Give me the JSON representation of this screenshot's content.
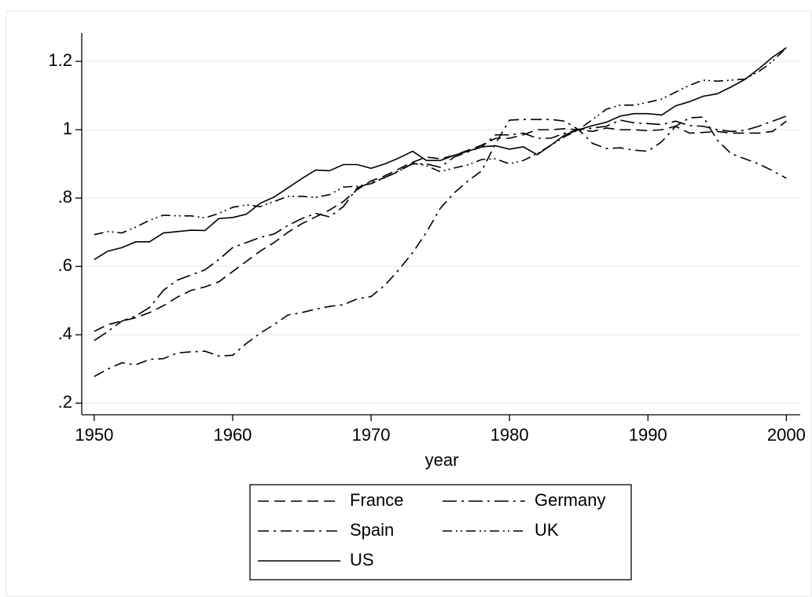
{
  "chart_data": {
    "type": "line",
    "x_label": "year",
    "x": [
      1950,
      1951,
      1952,
      1953,
      1954,
      1955,
      1956,
      1957,
      1958,
      1959,
      1960,
      1961,
      1962,
      1963,
      1964,
      1965,
      1966,
      1967,
      1968,
      1969,
      1970,
      1971,
      1972,
      1973,
      1974,
      1975,
      1976,
      1977,
      1978,
      1979,
      1980,
      1981,
      1982,
      1983,
      1984,
      1985,
      1986,
      1987,
      1988,
      1989,
      1990,
      1991,
      1992,
      1993,
      1994,
      1995,
      1996,
      1997,
      1998,
      1999,
      2000
    ],
    "xlim": [
      1949.1,
      2001
    ],
    "xticks": [
      1950,
      1960,
      1970,
      1980,
      1990,
      2000
    ],
    "ylim": [
      0.166,
      1.283
    ],
    "yticks": [
      {
        "value": 0.2,
        "label": ".2"
      },
      {
        "value": 0.4,
        "label": ".4"
      },
      {
        "value": 0.6,
        "label": ".6"
      },
      {
        "value": 0.8,
        "label": ".8"
      },
      1,
      {
        "value": 1.2,
        "label": "1.2"
      }
    ],
    "grid": true,
    "legend": "bottom",
    "series": [
      {
        "name": "France",
        "color": "#000000",
        "style": "dash",
        "values": [
          0.41,
          0.43,
          0.44,
          0.45,
          0.465,
          0.485,
          0.51,
          0.53,
          0.54,
          0.555,
          0.585,
          0.615,
          0.645,
          0.67,
          0.7,
          0.725,
          0.745,
          0.765,
          0.79,
          0.825,
          0.85,
          0.865,
          0.885,
          0.905,
          0.92,
          0.915,
          0.925,
          0.94,
          0.955,
          0.975,
          0.975,
          0.985,
          1.0,
          1.0,
          1.003,
          1.0,
          0.995,
          1.005,
          1.0,
          1.0,
          0.997,
          1.0,
          1.01,
          0.99,
          0.992,
          0.995,
          0.99,
          0.99,
          0.99,
          0.995,
          1.025
        ]
      },
      {
        "name": "Germany",
        "color": "#000000",
        "style": "longdash-dot",
        "values": [
          0.383,
          0.41,
          0.44,
          0.455,
          0.48,
          0.53,
          0.56,
          0.575,
          0.59,
          0.62,
          0.655,
          0.67,
          0.685,
          0.695,
          0.72,
          0.74,
          0.755,
          0.745,
          0.775,
          0.83,
          0.845,
          0.86,
          0.88,
          0.9,
          0.9,
          0.89,
          0.92,
          0.935,
          0.95,
          0.985,
          0.985,
          0.99,
          0.975,
          0.975,
          0.99,
          1.0,
          1.005,
          1.01,
          1.028,
          1.02,
          1.018,
          1.015,
          1.025,
          1.012,
          1.01,
          1.0,
          0.995,
          0.998,
          1.01,
          1.025,
          1.04
        ]
      },
      {
        "name": "Spain",
        "color": "#000000",
        "style": "dash-dot",
        "values": [
          0.278,
          0.3,
          0.318,
          0.312,
          0.328,
          0.33,
          0.347,
          0.35,
          0.352,
          0.338,
          0.34,
          0.375,
          0.405,
          0.43,
          0.458,
          0.465,
          0.475,
          0.483,
          0.488,
          0.505,
          0.512,
          0.545,
          0.59,
          0.64,
          0.7,
          0.77,
          0.815,
          0.85,
          0.88,
          0.96,
          1.028,
          1.03,
          1.03,
          1.03,
          1.025,
          1.0,
          0.96,
          0.945,
          0.947,
          0.94,
          0.937,
          0.965,
          1.01,
          1.035,
          1.037,
          0.97,
          0.93,
          0.915,
          0.9,
          0.88,
          0.858
        ]
      },
      {
        "name": "UK",
        "color": "#000000",
        "style": "dash-dot-dot",
        "values": [
          0.693,
          0.702,
          0.698,
          0.715,
          0.735,
          0.75,
          0.748,
          0.748,
          0.742,
          0.755,
          0.773,
          0.78,
          0.775,
          0.79,
          0.805,
          0.805,
          0.802,
          0.81,
          0.832,
          0.835,
          0.842,
          0.86,
          0.878,
          0.902,
          0.895,
          0.877,
          0.888,
          0.897,
          0.913,
          0.915,
          0.9,
          0.91,
          0.93,
          0.955,
          0.98,
          1.0,
          1.03,
          1.06,
          1.072,
          1.072,
          1.08,
          1.09,
          1.11,
          1.13,
          1.145,
          1.142,
          1.145,
          1.148,
          1.17,
          1.2,
          1.24
        ]
      },
      {
        "name": "US",
        "color": "#000000",
        "style": "solid",
        "values": [
          0.62,
          0.645,
          0.655,
          0.672,
          0.672,
          0.698,
          0.702,
          0.706,
          0.705,
          0.74,
          0.743,
          0.753,
          0.785,
          0.803,
          0.83,
          0.857,
          0.882,
          0.88,
          0.898,
          0.898,
          0.887,
          0.9,
          0.917,
          0.937,
          0.91,
          0.91,
          0.925,
          0.937,
          0.95,
          0.953,
          0.943,
          0.95,
          0.927,
          0.955,
          0.985,
          1.0,
          1.012,
          1.022,
          1.04,
          1.047,
          1.047,
          1.043,
          1.07,
          1.082,
          1.098,
          1.105,
          1.125,
          1.147,
          1.178,
          1.212,
          1.24
        ]
      }
    ]
  }
}
